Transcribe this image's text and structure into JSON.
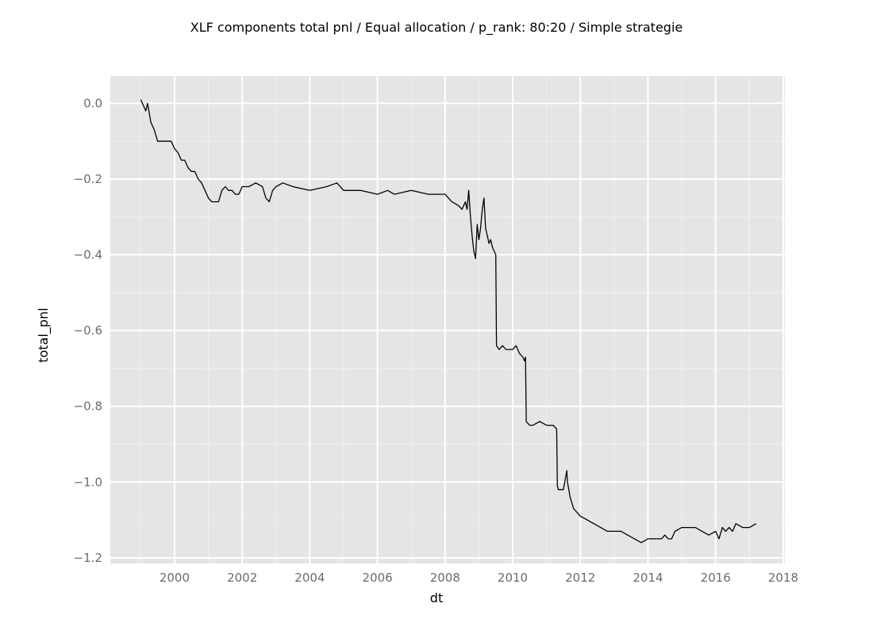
{
  "chart_data": {
    "type": "line",
    "title": "XLF components total pnl / Equal allocation / p_rank: 80:20 / Simple strategie",
    "xlabel": "dt",
    "ylabel": "total_pnl",
    "x_ticks": [
      "2000",
      "2002",
      "2004",
      "2006",
      "2008",
      "2010",
      "2012",
      "2014",
      "2016",
      "2018"
    ],
    "x_tick_values": [
      2000,
      2002,
      2004,
      2006,
      2008,
      2010,
      2012,
      2014,
      2016,
      2018
    ],
    "y_ticks": [
      "0.0",
      "−0.2",
      "−0.4",
      "−0.6",
      "−0.8",
      "−1.0",
      "−1.2"
    ],
    "y_tick_values": [
      0.0,
      -0.2,
      -0.4,
      -0.6,
      -0.8,
      -1.0,
      -1.2
    ],
    "xlim": [
      1998.1,
      2018.05
    ],
    "ylim": [
      -1.215,
      0.072
    ],
    "grid": true,
    "legend": "none",
    "colors": {
      "panel_bg": "#e5e5e5",
      "grid_major": "#ffffff",
      "grid_minor": "#f0f0f0",
      "line": "#000000"
    },
    "series": [
      {
        "x": [
          1999.0,
          1999.05,
          1999.1,
          1999.15,
          1999.2,
          1999.3,
          1999.4,
          1999.5,
          1999.6,
          1999.7,
          1999.8,
          1999.9,
          2000.0,
          2000.1,
          2000.2,
          2000.3,
          2000.4,
          2000.5,
          2000.6,
          2000.7,
          2000.8,
          2000.9,
          2001.0,
          2001.1,
          2001.2,
          2001.3,
          2001.4,
          2001.5,
          2001.6,
          2001.7,
          2001.8,
          2001.9,
          2002.0,
          2002.2,
          2002.4,
          2002.6,
          2002.7,
          2002.8,
          2002.9,
          2003.0,
          2003.2,
          2003.5,
          2004.0,
          2004.5,
          2004.8,
          2005.0,
          2005.5,
          2006.0,
          2006.3,
          2006.5,
          2007.0,
          2007.5,
          2007.8,
          2008.0,
          2008.2,
          2008.4,
          2008.5,
          2008.6,
          2008.65,
          2008.7,
          2008.75,
          2008.8,
          2008.85,
          2008.9,
          2008.95,
          2009.0,
          2009.05,
          2009.1,
          2009.15,
          2009.2,
          2009.25,
          2009.3,
          2009.35,
          2009.4,
          2009.45,
          2009.5,
          2009.52,
          2009.6,
          2009.7,
          2009.8,
          2009.9,
          2010.0,
          2010.1,
          2010.2,
          2010.3,
          2010.35,
          2010.38,
          2010.4,
          2010.5,
          2010.6,
          2010.8,
          2011.0,
          2011.2,
          2011.3,
          2011.32,
          2011.35,
          2011.4,
          2011.5,
          2011.6,
          2011.62,
          2011.7,
          2011.8,
          2011.9,
          2012.0,
          2012.2,
          2012.4,
          2012.6,
          2012.8,
          2013.0,
          2013.2,
          2013.4,
          2013.6,
          2013.8,
          2014.0,
          2014.2,
          2014.4,
          2014.5,
          2014.6,
          2014.7,
          2014.8,
          2015.0,
          2015.2,
          2015.4,
          2015.6,
          2015.8,
          2016.0,
          2016.1,
          2016.2,
          2016.3,
          2016.4,
          2016.5,
          2016.6,
          2016.8,
          2017.0,
          2017.2
        ],
        "y": [
          0.01,
          0.0,
          -0.01,
          -0.02,
          -0.0,
          -0.05,
          -0.07,
          -0.1,
          -0.1,
          -0.1,
          -0.1,
          -0.1,
          -0.12,
          -0.13,
          -0.15,
          -0.15,
          -0.17,
          -0.18,
          -0.18,
          -0.2,
          -0.21,
          -0.23,
          -0.25,
          -0.26,
          -0.26,
          -0.26,
          -0.23,
          -0.22,
          -0.23,
          -0.23,
          -0.24,
          -0.24,
          -0.22,
          -0.22,
          -0.21,
          -0.22,
          -0.25,
          -0.26,
          -0.23,
          -0.22,
          -0.21,
          -0.22,
          -0.23,
          -0.22,
          -0.21,
          -0.23,
          -0.23,
          -0.24,
          -0.23,
          -0.24,
          -0.23,
          -0.24,
          -0.24,
          -0.24,
          -0.26,
          -0.27,
          -0.28,
          -0.26,
          -0.28,
          -0.23,
          -0.3,
          -0.35,
          -0.39,
          -0.41,
          -0.32,
          -0.36,
          -0.33,
          -0.28,
          -0.25,
          -0.33,
          -0.35,
          -0.37,
          -0.36,
          -0.38,
          -0.39,
          -0.4,
          -0.64,
          -0.65,
          -0.64,
          -0.65,
          -0.65,
          -0.65,
          -0.64,
          -0.66,
          -0.67,
          -0.68,
          -0.67,
          -0.84,
          -0.85,
          -0.85,
          -0.84,
          -0.85,
          -0.85,
          -0.86,
          -1.01,
          -1.02,
          -1.02,
          -1.02,
          -0.97,
          -1.0,
          -1.04,
          -1.07,
          -1.08,
          -1.09,
          -1.1,
          -1.11,
          -1.12,
          -1.13,
          -1.13,
          -1.13,
          -1.14,
          -1.15,
          -1.16,
          -1.15,
          -1.15,
          -1.15,
          -1.14,
          -1.15,
          -1.15,
          -1.13,
          -1.12,
          -1.12,
          -1.12,
          -1.13,
          -1.14,
          -1.13,
          -1.15,
          -1.12,
          -1.13,
          -1.12,
          -1.13,
          -1.11,
          -1.12,
          -1.12,
          -1.11
        ]
      }
    ]
  }
}
